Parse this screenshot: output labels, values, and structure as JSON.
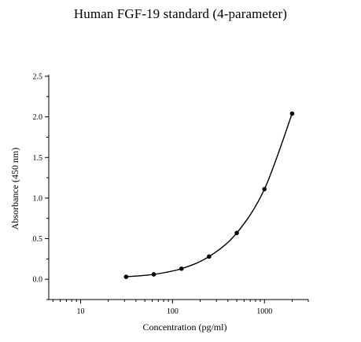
{
  "chart_data": {
    "type": "scatter",
    "title": "Human FGF-19 standard (4-parameter)",
    "xlabel": "Concentration (pg/ml)",
    "ylabel": "Absorbance (450 nm)",
    "x_scale": "log",
    "xlim": [
      4.5,
      3000
    ],
    "ylim": [
      -0.25,
      2.5
    ],
    "x_ticks": [
      10,
      100,
      1000
    ],
    "x_tick_labels": [
      "10",
      "100",
      "1000"
    ],
    "y_ticks": [
      0.0,
      0.5,
      1.0,
      1.5,
      2.0,
      2.5
    ],
    "y_tick_labels": [
      "0.0",
      "0.5",
      "1.0",
      "1.5",
      "2.0",
      "2.5"
    ],
    "grid": false,
    "legend": "none",
    "series": [
      {
        "marker": "circle",
        "color": "#000000",
        "fit": "4-parameter logistic",
        "points": [
          {
            "x": 31.25,
            "y": 0.03
          },
          {
            "x": 62.5,
            "y": 0.06
          },
          {
            "x": 125,
            "y": 0.13
          },
          {
            "x": 250,
            "y": 0.28
          },
          {
            "x": 500,
            "y": 0.57
          },
          {
            "x": 1000,
            "y": 1.11
          },
          {
            "x": 2000,
            "y": 2.04
          }
        ]
      }
    ]
  }
}
